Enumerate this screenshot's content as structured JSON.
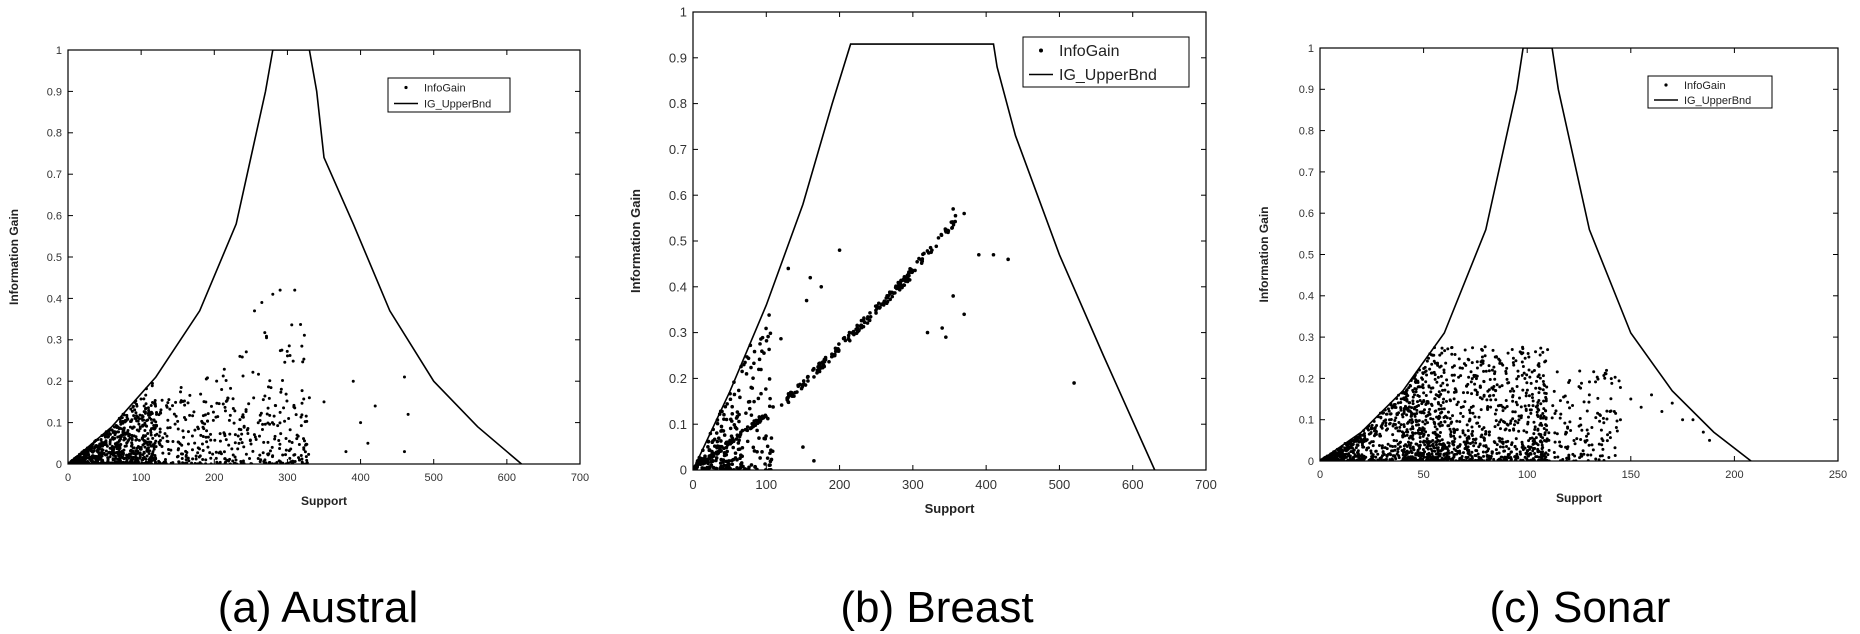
{
  "figure": {
    "captions": [
      "(a) Austral",
      "(b) Breast",
      "(c) Sonar"
    ]
  },
  "chart_data": [
    {
      "type": "scatter",
      "title": "",
      "caption": "(a) Austral",
      "xlabel": "Support",
      "ylabel": "Information Gain",
      "xlim": [
        0,
        700
      ],
      "ylim": [
        0,
        1
      ],
      "xticks": [
        0,
        100,
        200,
        300,
        400,
        500,
        600,
        700
      ],
      "yticks": [
        0,
        0.1,
        0.2,
        0.3,
        0.4,
        0.5,
        0.6,
        0.7,
        0.8,
        0.9,
        1
      ],
      "grid": false,
      "legend": {
        "position": "top-right",
        "entries": [
          "InfoGain",
          "IG_UpperBnd"
        ]
      },
      "series": [
        {
          "name": "InfoGain",
          "kind": "points",
          "clusters": [
            {
              "x_range": [
                0,
                120
              ],
              "slope_max": 0.0018,
              "count": 700
            },
            {
              "x_range": [
                60,
                330
              ],
              "slope_max": 0.0012,
              "count": 260
            },
            {
              "x_range": [
                100,
                330
              ],
              "y_range": [
                0,
                0.16
              ],
              "count": 260
            }
          ],
          "points": [
            [
              280,
              0.41
            ],
            [
              290,
              0.42
            ],
            [
              310,
              0.42
            ],
            [
              265,
              0.39
            ],
            [
              255,
              0.37
            ],
            [
              390,
              0.2
            ],
            [
              400,
              0.1
            ],
            [
              460,
              0.21
            ],
            [
              465,
              0.12
            ],
            [
              410,
              0.05
            ],
            [
              460,
              0.03
            ],
            [
              380,
              0.03
            ],
            [
              420,
              0.14
            ],
            [
              350,
              0.15
            ],
            [
              330,
              0.16
            ]
          ]
        },
        {
          "name": "IG_UpperBnd",
          "kind": "curve",
          "x": [
            0,
            60,
            120,
            180,
            230,
            270,
            280,
            290,
            310,
            330,
            340,
            350,
            390,
            440,
            500,
            560,
            620
          ],
          "y": [
            0,
            0.09,
            0.21,
            0.37,
            0.58,
            0.9,
            1.0,
            1.0,
            1.0,
            1.0,
            0.9,
            0.74,
            0.58,
            0.37,
            0.2,
            0.09,
            0
          ]
        }
      ]
    },
    {
      "type": "scatter",
      "title": "",
      "caption": "(b) Breast",
      "xlabel": "Support",
      "ylabel": "Information Gain",
      "xlim": [
        0,
        700
      ],
      "ylim": [
        0,
        1
      ],
      "xticks": [
        0,
        100,
        200,
        300,
        400,
        500,
        600,
        700
      ],
      "yticks": [
        0,
        0.1,
        0.2,
        0.3,
        0.4,
        0.5,
        0.6,
        0.7,
        0.8,
        0.9,
        1
      ],
      "grid": false,
      "legend": {
        "position": "top-right",
        "entries": [
          "InfoGain",
          "IG_UpperBnd"
        ]
      },
      "series": [
        {
          "name": "InfoGain",
          "kind": "points",
          "clusters": [
            {
              "x_range": [
                0,
                110
              ],
              "slope_max": 0.0036,
              "count": 260
            },
            {
              "x_range": [
                0,
                100
              ],
              "slope": 0.0012,
              "count": 90
            },
            {
              "x_range": [
                120,
                300
              ],
              "line": [
                [
                  120,
                  0.14
                ],
                [
                  300,
                  0.43
                ]
              ],
              "count": 160
            },
            {
              "x_range": [
                280,
                370
              ],
              "line": [
                [
                  280,
                  0.4
                ],
                [
                  360,
                  0.55
                ]
              ],
              "count": 50
            }
          ],
          "points": [
            [
              120,
              0.46
            ],
            [
              130,
              0.44
            ],
            [
              160,
              0.42
            ],
            [
              175,
              0.4
            ],
            [
              200,
              0.48
            ],
            [
              155,
              0.37
            ],
            [
              165,
              0.02
            ],
            [
              150,
              0.05
            ],
            [
              520,
              0.19
            ],
            [
              430,
              0.46
            ],
            [
              410,
              0.47
            ],
            [
              390,
              0.47
            ],
            [
              370,
              0.34
            ],
            [
              355,
              0.38
            ],
            [
              340,
              0.31
            ],
            [
              345,
              0.29
            ],
            [
              320,
              0.3
            ],
            [
              370,
              0.56
            ],
            [
              355,
              0.57
            ]
          ]
        },
        {
          "name": "IG_UpperBnd",
          "kind": "curve",
          "x": [
            0,
            50,
            100,
            150,
            190,
            215,
            220,
            240,
            260,
            300,
            350,
            400,
            410,
            415,
            440,
            500,
            560,
            630
          ],
          "y": [
            0,
            0.17,
            0.36,
            0.58,
            0.8,
            0.93,
            0.93,
            0.93,
            0.93,
            0.93,
            0.93,
            0.93,
            0.93,
            0.88,
            0.73,
            0.47,
            0.25,
            0
          ]
        }
      ]
    },
    {
      "type": "scatter",
      "title": "",
      "caption": "(c) Sonar",
      "xlabel": "Support",
      "ylabel": "Information Gain",
      "xlim": [
        0,
        250
      ],
      "ylim": [
        0,
        1
      ],
      "xticks": [
        0,
        50,
        100,
        150,
        200,
        250
      ],
      "yticks": [
        0,
        0.1,
        0.2,
        0.3,
        0.4,
        0.5,
        0.6,
        0.7,
        0.8,
        0.9,
        1
      ],
      "grid": false,
      "legend": {
        "position": "top-right",
        "entries": [
          "InfoGain",
          "IG_UpperBnd"
        ]
      },
      "series": [
        {
          "name": "InfoGain",
          "kind": "points",
          "clusters": [
            {
              "x_range": [
                0,
                60
              ],
              "slope_max": 0.0055,
              "count": 700
            },
            {
              "x_range": [
                40,
                110
              ],
              "y_range": [
                0,
                0.28
              ],
              "count": 900
            },
            {
              "x_range": [
                100,
                145
              ],
              "y_range": [
                0,
                0.22
              ],
              "count": 160
            }
          ],
          "points": [
            [
              150,
              0.15
            ],
            [
              155,
              0.13
            ],
            [
              160,
              0.16
            ],
            [
              165,
              0.12
            ],
            [
              170,
              0.14
            ],
            [
              175,
              0.1
            ],
            [
              180,
              0.1
            ],
            [
              185,
              0.07
            ],
            [
              188,
              0.05
            ],
            [
              145,
              0.1
            ],
            [
              140,
              0.12
            ],
            [
              130,
              0.16
            ],
            [
              125,
              0.18
            ],
            [
              120,
              0.19
            ]
          ]
        },
        {
          "name": "IG_UpperBnd",
          "kind": "curve",
          "x": [
            0,
            20,
            40,
            60,
            80,
            95,
            98,
            100,
            110,
            112,
            115,
            130,
            150,
            170,
            190,
            208
          ],
          "y": [
            0,
            0.07,
            0.17,
            0.31,
            0.56,
            0.9,
            1.0,
            1.0,
            1.0,
            1.0,
            0.9,
            0.56,
            0.31,
            0.17,
            0.07,
            0
          ]
        }
      ]
    }
  ]
}
